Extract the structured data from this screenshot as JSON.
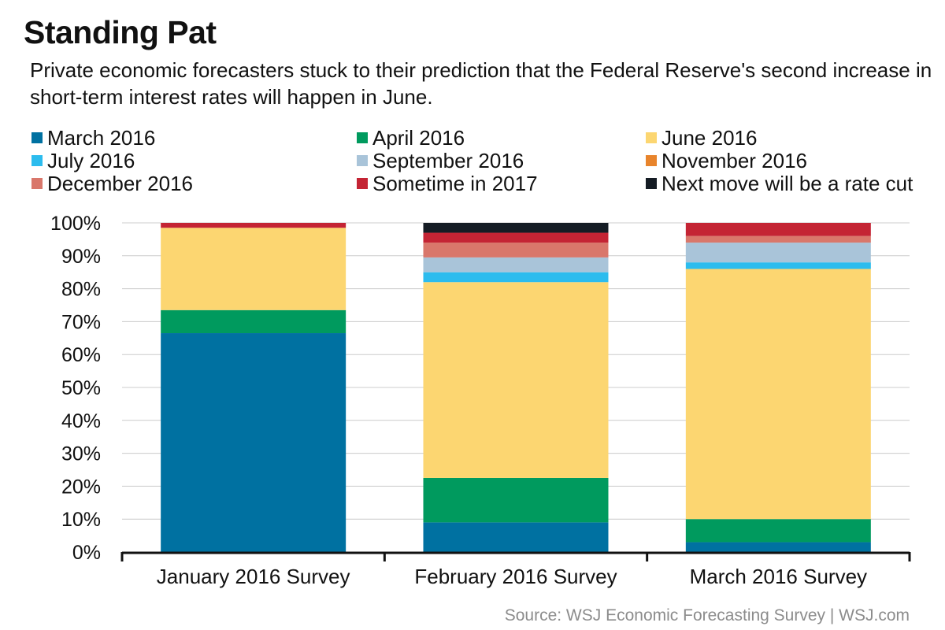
{
  "title": "Standing Pat",
  "subtitle": "Private economic forecasters stuck to their prediction that the Federal Reserve's second increase in short-term interest rates will happen in June.",
  "source": "Source: WSJ Economic Forecasting Survey  |  WSJ.com",
  "colors": {
    "March 2016": "#0071a1",
    "April 2016": "#009a5e",
    "June 2016": "#fcd671",
    "July 2016": "#2cbcee",
    "September 2016": "#a9c4d9",
    "November 2016": "#e8842c",
    "December 2016": "#d9776b",
    "Sometime in 2017": "#c42434",
    "Next move will be a rate cut": "#151c24"
  },
  "chart_data": {
    "type": "bar",
    "stacked": true,
    "categories": [
      "January 2016 Survey",
      "February 2016 Survey",
      "March 2016 Survey"
    ],
    "series": [
      {
        "name": "March 2016",
        "values": [
          66.5,
          9.0,
          3.0
        ]
      },
      {
        "name": "April 2016",
        "values": [
          7.0,
          13.5,
          7.0
        ]
      },
      {
        "name": "June 2016",
        "values": [
          25.0,
          59.5,
          76.0
        ]
      },
      {
        "name": "July 2016",
        "values": [
          0,
          3.0,
          2.0
        ]
      },
      {
        "name": "September 2016",
        "values": [
          0,
          4.5,
          6.0
        ]
      },
      {
        "name": "November 2016",
        "values": [
          0,
          0,
          0
        ]
      },
      {
        "name": "December 2016",
        "values": [
          0,
          4.5,
          2.0
        ]
      },
      {
        "name": "Sometime in 2017",
        "values": [
          1.5,
          3.0,
          4.0
        ]
      },
      {
        "name": "Next move will be a rate cut",
        "values": [
          0,
          3.0,
          0
        ]
      }
    ],
    "ylim": [
      0,
      100
    ],
    "yticks": [
      "0%",
      "10%",
      "20%",
      "30%",
      "40%",
      "50%",
      "60%",
      "70%",
      "80%",
      "90%",
      "100%"
    ],
    "ytick_values": [
      0,
      10,
      20,
      30,
      40,
      50,
      60,
      70,
      80,
      90,
      100
    ],
    "grid": true,
    "legend_position": "top"
  }
}
